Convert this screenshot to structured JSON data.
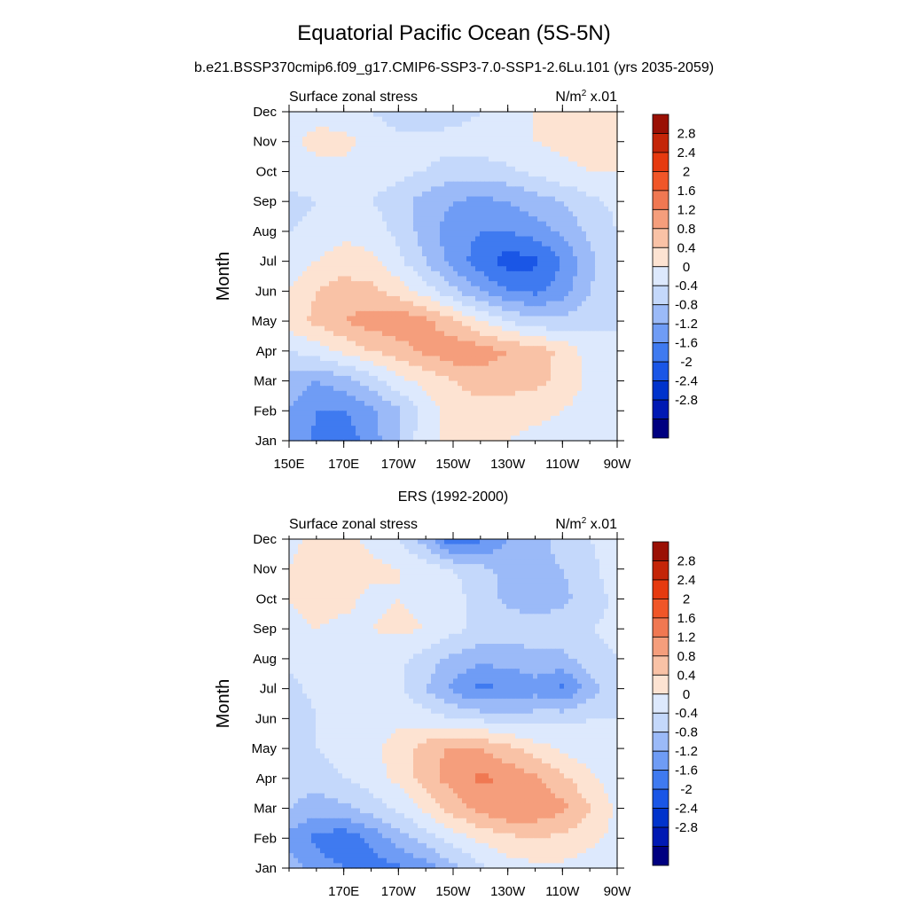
{
  "header": {
    "title": "Equatorial Pacific Ocean (5S-5N)",
    "subtitle": "b.e21.BSSP370cmip6.f09_g17.CMIP6-SSP3-7.0-SSP1-2.6Lu.101 (yrs 2035-2059)"
  },
  "colors": [
    "#000080",
    "#0019b3",
    "#0033cc",
    "#1a56e6",
    "#3f7af0",
    "#6f9cf5",
    "#9bbaf8",
    "#c4d8fb",
    "#dde9fd",
    "#fde3d2",
    "#f9c2a6",
    "#f59e7c",
    "#f07852",
    "#f05628",
    "#e63a0f",
    "#c42508",
    "#9a1004"
  ],
  "chart_data": [
    {
      "type": "heatmap",
      "panel_label": "",
      "left_label": "Surface zonal stress",
      "right_label": "N/m",
      "right_label_sup": "2",
      "right_label_tail": " x.01",
      "ylabel": "Month",
      "x_ticks": [
        "150E",
        "170E",
        "170W",
        "150W",
        "130W",
        "110W",
        "90W"
      ],
      "x_tick_lon": [
        150,
        170,
        190,
        210,
        230,
        250,
        270
      ],
      "xlim": [
        150,
        270
      ],
      "y_ticks": [
        "Jan",
        "Feb",
        "Mar",
        "Apr",
        "May",
        "Jun",
        "Jul",
        "Aug",
        "Sep",
        "Oct",
        "Nov",
        "Dec"
      ],
      "ylim": [
        1,
        12
      ],
      "levels": [
        -2.8,
        -2.4,
        -2,
        -1.6,
        -1.2,
        -0.8,
        -0.4,
        0,
        0.4,
        0.8,
        1.2,
        1.6,
        2,
        2.4,
        2.8
      ],
      "colorbar_labels": [
        "2.8",
        "2.4",
        "2",
        "1.6",
        "1.2",
        "0.8",
        "0.4",
        "0",
        "-0.4",
        "-0.8",
        "-1.2",
        "-1.6",
        "-2",
        "-2.4",
        "-2.8"
      ],
      "field_lon": [
        150,
        160,
        170,
        180,
        190,
        200,
        210,
        220,
        230,
        240,
        250,
        260,
        270
      ],
      "field_month": [
        1,
        2,
        3,
        4,
        5,
        6,
        7,
        8,
        9,
        10,
        11,
        12
      ],
      "values": [
        [
          -0.9,
          -1.3,
          -1.5,
          -1.0,
          -0.4,
          0.3,
          0.5,
          0.4,
          0.4,
          0.3,
          0.2,
          0.1,
          0.1
        ],
        [
          -0.8,
          -1.2,
          -1.2,
          -0.9,
          -0.5,
          0.2,
          0.6,
          0.6,
          0.6,
          0.5,
          0.4,
          0.2,
          0.2
        ],
        [
          -0.6,
          -0.8,
          -0.6,
          -0.2,
          0.3,
          0.5,
          0.8,
          1.0,
          1.0,
          0.9,
          0.7,
          0.3,
          0.1
        ],
        [
          0.0,
          0.2,
          0.5,
          0.8,
          1.0,
          1.3,
          1.5,
          1.4,
          1.2,
          1.0,
          0.7,
          0.2,
          0.0
        ],
        [
          0.6,
          0.9,
          1.2,
          1.4,
          1.5,
          1.3,
          0.9,
          0.4,
          0.0,
          -0.3,
          -0.3,
          -0.1,
          0.0
        ],
        [
          0.4,
          0.8,
          1.0,
          0.9,
          0.6,
          0.2,
          -0.3,
          -0.8,
          -1.2,
          -1.3,
          -1.0,
          -0.4,
          -0.1
        ],
        [
          0.2,
          0.4,
          0.6,
          0.5,
          0.1,
          -0.4,
          -1.0,
          -1.4,
          -1.8,
          -1.7,
          -1.2,
          -0.5,
          -0.1
        ],
        [
          0.0,
          0.1,
          0.3,
          0.2,
          -0.1,
          -0.6,
          -1.0,
          -1.2,
          -1.2,
          -1.0,
          -0.7,
          -0.3,
          0.0
        ],
        [
          -0.1,
          0.0,
          0.1,
          0.0,
          -0.2,
          -0.6,
          -0.8,
          -0.9,
          -0.8,
          -0.6,
          -0.4,
          -0.1,
          0.1
        ],
        [
          0.2,
          0.3,
          0.3,
          0.2,
          0.1,
          0.0,
          -0.2,
          -0.2,
          -0.1,
          0.1,
          0.3,
          0.4,
          0.4
        ],
        [
          0.3,
          0.5,
          0.5,
          0.3,
          0.1,
          0.1,
          0.2,
          0.2,
          0.3,
          0.4,
          0.5,
          0.6,
          0.6
        ],
        [
          0.2,
          0.3,
          0.2,
          0.0,
          -0.2,
          -0.3,
          -0.2,
          0.0,
          0.2,
          0.4,
          0.5,
          0.5,
          0.5
        ]
      ]
    },
    {
      "type": "heatmap",
      "panel_label": "ERS (1992-2000)",
      "left_label": "Surface zonal stress",
      "right_label": "N/m",
      "right_label_sup": "2",
      "right_label_tail": " x.01",
      "ylabel": "Month",
      "x_ticks": [
        "170E",
        "170W",
        "150W",
        "130W",
        "110W",
        "90W"
      ],
      "x_tick_lon": [
        170,
        190,
        210,
        230,
        250,
        270
      ],
      "xlim": [
        150,
        270
      ],
      "y_ticks": [
        "Jan",
        "Feb",
        "Mar",
        "Apr",
        "May",
        "Jun",
        "Jul",
        "Aug",
        "Sep",
        "Oct",
        "Nov",
        "Dec"
      ],
      "ylim": [
        1,
        12
      ],
      "levels": [
        -2.8,
        -2.4,
        -2,
        -1.6,
        -1.2,
        -0.8,
        -0.4,
        0,
        0.4,
        0.8,
        1.2,
        1.6,
        2,
        2.4,
        2.8
      ],
      "colorbar_labels": [
        "2.8",
        "2.4",
        "2",
        "1.6",
        "1.2",
        "0.8",
        "0.4",
        "0",
        "-0.4",
        "-0.8",
        "-1.2",
        "-1.6",
        "-2",
        "-2.4",
        "-2.8"
      ],
      "field_lon": [
        150,
        160,
        170,
        180,
        190,
        200,
        210,
        220,
        230,
        240,
        250,
        260,
        270
      ],
      "field_month": [
        1,
        2,
        3,
        4,
        5,
        6,
        7,
        8,
        9,
        10,
        11,
        12
      ],
      "values": [
        [
          -0.6,
          -1.0,
          -1.2,
          -1.4,
          -1.3,
          -1.0,
          -0.5,
          -0.1,
          0.2,
          0.3,
          0.3,
          0.2,
          0.1
        ],
        [
          -0.9,
          -1.3,
          -1.5,
          -1.1,
          -0.6,
          -0.2,
          0.2,
          0.5,
          0.7,
          0.8,
          0.7,
          0.5,
          0.3
        ],
        [
          -0.4,
          -0.6,
          -0.5,
          -0.2,
          0.1,
          0.5,
          1.0,
          1.3,
          1.6,
          1.5,
          1.3,
          0.8,
          0.3
        ],
        [
          -0.2,
          -0.2,
          0.0,
          0.2,
          0.5,
          1.0,
          1.4,
          1.7,
          1.5,
          1.3,
          0.9,
          0.5,
          0.2
        ],
        [
          -0.2,
          0.0,
          0.2,
          0.3,
          0.6,
          1.0,
          1.3,
          1.2,
          0.9,
          0.6,
          0.3,
          0.1,
          0.0
        ],
        [
          -0.3,
          0.0,
          0.1,
          0.2,
          0.3,
          0.2,
          0.0,
          -0.1,
          -0.2,
          -0.2,
          -0.1,
          0.0,
          0.0
        ],
        [
          -0.1,
          0.1,
          0.2,
          0.2,
          0.1,
          -0.4,
          -0.9,
          -1.3,
          -1.2,
          -1.0,
          -1.3,
          -0.6,
          -0.1
        ],
        [
          0.1,
          0.2,
          0.2,
          0.2,
          0.1,
          -0.2,
          -0.5,
          -0.7,
          -0.6,
          -0.5,
          -0.5,
          -0.2,
          0.0
        ],
        [
          0.3,
          0.4,
          0.3,
          0.4,
          0.5,
          0.4,
          0.1,
          -0.1,
          -0.2,
          -0.2,
          -0.2,
          0.0,
          0.1
        ],
        [
          0.4,
          0.6,
          0.5,
          0.3,
          0.4,
          0.3,
          0.2,
          -0.2,
          -0.5,
          -0.6,
          -0.5,
          -0.2,
          0.1
        ],
        [
          0.4,
          0.6,
          0.6,
          0.5,
          0.4,
          0.2,
          0.0,
          -0.3,
          -0.5,
          -0.5,
          -0.4,
          -0.1,
          0.2
        ],
        [
          0.3,
          0.5,
          0.5,
          0.3,
          0.0,
          -0.6,
          -1.6,
          -1.3,
          -0.8,
          -0.5,
          -0.3,
          0.0,
          0.2
        ]
      ]
    }
  ]
}
